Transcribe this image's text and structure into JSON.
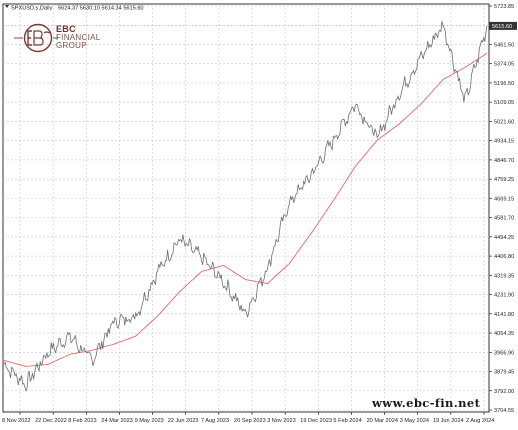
{
  "header": {
    "symbol": "SPXUSD.s,Daily",
    "ohlc": "5624.37 5630.10 5614.34 5615.60"
  },
  "logo": {
    "line1": "EBC",
    "line2": "FINANCIAL",
    "line3": "GROUP"
  },
  "watermark": "www.ebc-fin.net",
  "colors": {
    "price": "#6e6e6e",
    "moving_average": "#e06a6a",
    "grid": "#c8c8c8",
    "price_tag": "#333333",
    "logo": "#7a3a34"
  },
  "chart_data": {
    "type": "line",
    "title": "",
    "xlabel": "",
    "ylabel": "",
    "last_price_label": "5615.60",
    "ylim": [
      3704.55,
      5723.85
    ],
    "y_ticks": [
      "5723.85",
      "5548.95",
      "5461.50",
      "5374.05",
      "5196.50",
      "5109.05",
      "5021.60",
      "4934.15",
      "4846.70",
      "4759.25",
      "4669.15",
      "4581.70",
      "4494.25",
      "4406.80",
      "4319.35",
      "4231.90",
      "4141.80",
      "4054.35",
      "3966.90",
      "3879.45",
      "3792.00",
      "3704.55"
    ],
    "x_ticks": [
      "8 Nov 2022",
      "22 Dec 2022",
      "8 Feb 2023",
      "24 Mar 2023",
      "9 May 2023",
      "22 Jun 2023",
      "7 Aug 2023",
      "20 Sep 2023",
      "3 Nov 2023",
      "19 Dec 2023",
      "5 Feb 2024",
      "20 Mar 2024",
      "3 May 2024",
      "19 Jun 2024",
      "2 Aug 2024"
    ],
    "series": [
      {
        "values_by_month": [
          {
            "x": "Nov 2022",
            "y": 3940
          },
          {
            "x": "Dec 2022",
            "y": 3840
          },
          {
            "x": "Jan 2023",
            "y": 4000
          },
          {
            "x": "Feb 2023",
            "y": 4080
          },
          {
            "x": "Mar 2023",
            "y": 3960
          },
          {
            "x": "Apr 2023",
            "y": 4150
          },
          {
            "x": "May 2023",
            "y": 4180
          },
          {
            "x": "Jun 2023",
            "y": 4400
          },
          {
            "x": "Jul 2023",
            "y": 4560
          },
          {
            "x": "Aug 2023",
            "y": 4470
          },
          {
            "x": "Sep 2023",
            "y": 4350
          },
          {
            "x": "Oct 2023",
            "y": 4190
          },
          {
            "x": "Nov 2023",
            "y": 4420
          },
          {
            "x": "Dec 2023",
            "y": 4740
          },
          {
            "x": "Jan 2024",
            "y": 4880
          },
          {
            "x": "Feb 2024",
            "y": 5050
          },
          {
            "x": "Mar 2024",
            "y": 5230
          },
          {
            "x": "Apr 2024",
            "y": 5060
          },
          {
            "x": "May 2024",
            "y": 5280
          },
          {
            "x": "Jun 2024",
            "y": 5460
          },
          {
            "x": "Jul 2024",
            "y": 5620
          },
          {
            "x": "Aug 2024",
            "y": 5240
          },
          {
            "x": "Sep 2024",
            "y": 5615.6
          }
        ]
      },
      {
        "values_by_month": [
          {
            "x": "Nov 2022",
            "y": 3960
          },
          {
            "x": "Dec 2022",
            "y": 3930
          },
          {
            "x": "Jan 2023",
            "y": 3940
          },
          {
            "x": "Feb 2023",
            "y": 3990
          },
          {
            "x": "Mar 2023",
            "y": 4010
          },
          {
            "x": "Apr 2023",
            "y": 4040
          },
          {
            "x": "May 2023",
            "y": 4080
          },
          {
            "x": "Jun 2023",
            "y": 4180
          },
          {
            "x": "Jul 2023",
            "y": 4300
          },
          {
            "x": "Aug 2023",
            "y": 4400
          },
          {
            "x": "Sep 2023",
            "y": 4430
          },
          {
            "x": "Oct 2023",
            "y": 4360
          },
          {
            "x": "Nov 2023",
            "y": 4340
          },
          {
            "x": "Dec 2023",
            "y": 4440
          },
          {
            "x": "Jan 2024",
            "y": 4590
          },
          {
            "x": "Feb 2024",
            "y": 4750
          },
          {
            "x": "Mar 2024",
            "y": 4920
          },
          {
            "x": "Apr 2024",
            "y": 5050
          },
          {
            "x": "May 2024",
            "y": 5130
          },
          {
            "x": "Jun 2024",
            "y": 5230
          },
          {
            "x": "Jul 2024",
            "y": 5350
          },
          {
            "x": "Aug 2024",
            "y": 5410
          },
          {
            "x": "Sep 2024",
            "y": 5480
          }
        ]
      }
    ],
    "grid": true
  }
}
